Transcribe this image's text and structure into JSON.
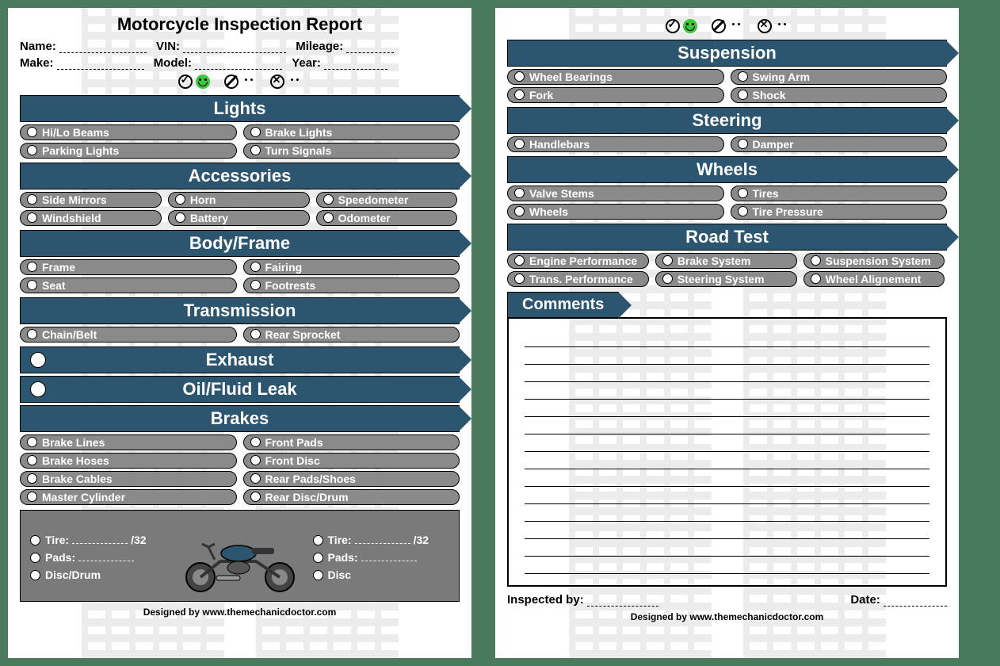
{
  "title": "Motorcycle Inspection Report",
  "colors": {
    "page_bg": "#4a7a5c",
    "header_bg": "#2c5670",
    "header_text": "#ffffff",
    "pill_bg": "#8a8a8a",
    "pill_text": "#ffffff",
    "tire_panel_bg": "#7a7a7a",
    "face_good": "#3cc73c",
    "face_warn": "#ffd633",
    "face_bad": "#ff4d4d"
  },
  "info_fields": [
    {
      "label": "Name:",
      "blank_width": 110
    },
    {
      "label": "VIN:",
      "blank_width": 130
    },
    {
      "label": "Mileage:",
      "blank_width": 60
    },
    {
      "label": "Make:",
      "blank_width": 110
    },
    {
      "label": "Model:",
      "blank_width": 110
    },
    {
      "label": "Year:",
      "blank_width": 80
    }
  ],
  "legend": [
    {
      "icon": "check",
      "face": "good"
    },
    {
      "icon": "slash",
      "face": "warn"
    },
    {
      "icon": "x",
      "face": "bad"
    }
  ],
  "page1_sections": [
    {
      "title": "Lights",
      "cols": 2,
      "inline_dot": false,
      "items": [
        "Hi/Lo Beams",
        "Brake Lights",
        "Parking Lights",
        "Turn Signals"
      ]
    },
    {
      "title": "Accessories",
      "cols": 3,
      "inline_dot": false,
      "items": [
        "Side Mirrors",
        "Horn",
        "Speedometer",
        "Windshield",
        "Battery",
        "Odometer"
      ]
    },
    {
      "title": "Body/Frame",
      "cols": 2,
      "inline_dot": false,
      "items": [
        "Frame",
        "Fairing",
        "Seat",
        "Footrests"
      ]
    },
    {
      "title": "Transmission",
      "cols": 2,
      "inline_dot": false,
      "items": [
        "Chain/Belt",
        "Rear Sprocket"
      ]
    },
    {
      "title": "Exhaust",
      "cols": 2,
      "inline_dot": true,
      "items": []
    },
    {
      "title": "Oil/Fluid Leak",
      "cols": 2,
      "inline_dot": true,
      "items": []
    },
    {
      "title": "Brakes",
      "cols": 2,
      "inline_dot": false,
      "items": [
        "Brake Lines",
        "Front Pads",
        "Brake Hoses",
        "Front Disc",
        "Brake Cables",
        "Rear Pads/Shoes",
        "Master Cylinder",
        "Rear Disc/Drum"
      ]
    }
  ],
  "tire_panel": {
    "left": [
      {
        "label": "Tire:",
        "blank": true,
        "suffix": "/32"
      },
      {
        "label": "Pads:",
        "blank": true,
        "suffix": ""
      },
      {
        "label": "Disc/Drum",
        "blank": false,
        "suffix": ""
      }
    ],
    "right": [
      {
        "label": "Tire:",
        "blank": true,
        "suffix": "/32"
      },
      {
        "label": "Pads:",
        "blank": true,
        "suffix": ""
      },
      {
        "label": "Disc",
        "blank": false,
        "suffix": ""
      }
    ]
  },
  "page2_sections": [
    {
      "title": "Suspension",
      "cols": 2,
      "inline_dot": false,
      "items": [
        "Wheel Bearings",
        "Swing Arm",
        "Fork",
        "Shock"
      ]
    },
    {
      "title": "Steering",
      "cols": 2,
      "inline_dot": false,
      "items": [
        "Handlebars",
        "Damper"
      ]
    },
    {
      "title": "Wheels",
      "cols": 2,
      "inline_dot": false,
      "items": [
        "Valve Stems",
        "Tires",
        "Wheels",
        "Tire Pressure"
      ]
    },
    {
      "title": "Road Test",
      "cols": 3,
      "inline_dot": false,
      "items": [
        "Engine Performance",
        "Brake System",
        "Suspension System",
        "Trans. Performance",
        "Steering System",
        "Wheel Alignement"
      ]
    }
  ],
  "comments_header": "Comments",
  "comment_lines": 14,
  "signature": {
    "by": "Inspected by:",
    "date": "Date:"
  },
  "footer": "Designed by www.themechanicdoctor.com"
}
